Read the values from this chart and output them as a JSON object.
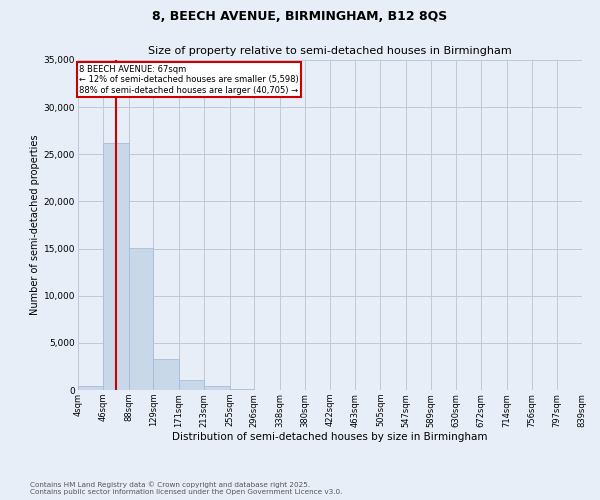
{
  "title1": "8, BEECH AVENUE, BIRMINGHAM, B12 8QS",
  "title2": "Size of property relative to semi-detached houses in Birmingham",
  "xlabel": "Distribution of semi-detached houses by size in Birmingham",
  "ylabel": "Number of semi-detached properties",
  "property_size": 67,
  "property_label": "8 BEECH AVENUE: 67sqm",
  "pct_smaller": 12,
  "pct_larger": 88,
  "num_smaller": 5598,
  "num_larger": 40705,
  "bar_color": "#c8d8e8",
  "bar_edge_color": "#a0b8d8",
  "line_color": "#cc0000",
  "annotation_box_color": "#cc0000",
  "bg_color": "#e8eef8",
  "grid_color": "#c0c8d8",
  "footnote1": "Contains HM Land Registry data © Crown copyright and database right 2025.",
  "footnote2": "Contains public sector information licensed under the Open Government Licence v3.0.",
  "bins": [
    4,
    46,
    88,
    129,
    171,
    213,
    255,
    296,
    338,
    380,
    422,
    463,
    505,
    547,
    589,
    630,
    672,
    714,
    756,
    797,
    839
  ],
  "bin_labels": [
    "4sqm",
    "46sqm",
    "88sqm",
    "129sqm",
    "171sqm",
    "213sqm",
    "255sqm",
    "296sqm",
    "338sqm",
    "380sqm",
    "422sqm",
    "463sqm",
    "505sqm",
    "547sqm",
    "589sqm",
    "630sqm",
    "672sqm",
    "714sqm",
    "756sqm",
    "797sqm",
    "839sqm"
  ],
  "counts": [
    400,
    26200,
    15100,
    3300,
    1100,
    450,
    150,
    50,
    20,
    10,
    5,
    3,
    2,
    1,
    1,
    0,
    0,
    0,
    0,
    0
  ],
  "ylim": [
    0,
    35000
  ],
  "yticks": [
    0,
    5000,
    10000,
    15000,
    20000,
    25000,
    30000,
    35000
  ]
}
